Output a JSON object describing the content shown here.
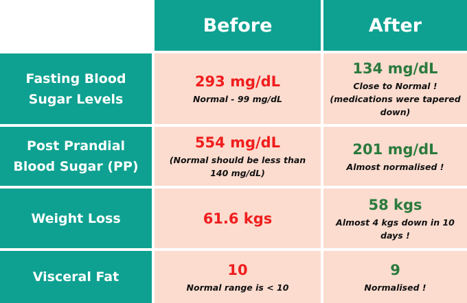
{
  "header": {
    "before": "Before",
    "after": "After"
  },
  "rows": [
    {
      "label": "Fasting Blood Sugar Levels",
      "before": {
        "value": "293 mg/dL",
        "note": "Normal - 99 mg/dL"
      },
      "after": {
        "value": "134 mg/dL",
        "note": "Close to Normal ! (medications were tapered down)"
      }
    },
    {
      "label": "Post Prandial Blood Sugar (PP)",
      "before": {
        "value": "554 mg/dL",
        "note": "(Normal should be less than 140 mg/dL)"
      },
      "after": {
        "value": "201 mg/dL",
        "note": "Almost normalised !"
      }
    },
    {
      "label": "Weight Loss",
      "before": {
        "value": "61.6 kgs",
        "note": ""
      },
      "after": {
        "value": "58 kgs",
        "note": "Almost 4 kgs down in 10 days !"
      }
    },
    {
      "label": "Visceral Fat",
      "before": {
        "value": "10",
        "note": "Normal range is < 10"
      },
      "after": {
        "value": "9",
        "note": "Normalised !"
      }
    }
  ],
  "colors": {
    "teal": "#0ea191",
    "peach": "#fbdccf",
    "before_value": "#f01d1d",
    "after_value": "#2b7a3d"
  }
}
